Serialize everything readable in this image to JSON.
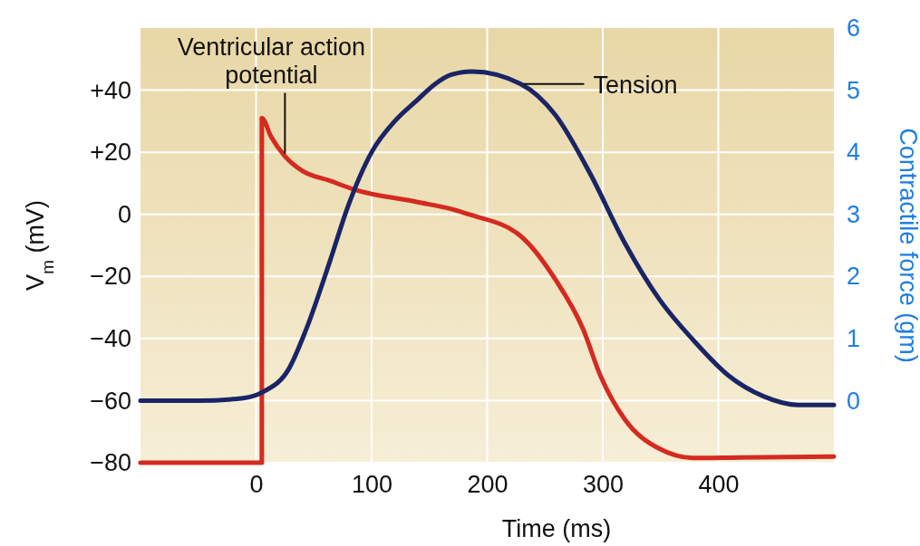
{
  "chart_data": {
    "type": "line",
    "xlabel": "Time (ms)",
    "ylabel": "V$_{m}$ (mV)",
    "y2label": "Contractile force (gm)",
    "xlim": [
      -100,
      500
    ],
    "xticks": [
      0,
      100,
      200,
      300,
      400
    ],
    "ylim": [
      -80,
      60
    ],
    "yticks": [
      -80,
      -60,
      -40,
      -20,
      0,
      {
        "value": 20,
        "label": "+20"
      },
      {
        "value": 40,
        "label": "+40"
      }
    ],
    "y2lim": [
      -1,
      6
    ],
    "y2ticks": [
      0,
      1,
      2,
      3,
      4,
      5,
      6
    ],
    "grid": true,
    "legend": false,
    "series": [
      {
        "name": "Ventricular action potential",
        "color": "#d42a20",
        "x": [
          -100,
          5,
          5,
          13,
          25,
          40,
          64,
          85,
          139,
          169,
          184,
          229,
          259,
          283,
          298,
          319,
          349,
          379,
          420,
          460,
          500
        ],
        "values": [
          -80,
          -80,
          31,
          25,
          18.7,
          14,
          10.8,
          8,
          4,
          1.7,
          0,
          -7,
          -21,
          -37,
          -52,
          -66,
          -75.5,
          -78.5,
          -78.3,
          -78.2,
          -78
        ]
      },
      {
        "name": "Tension",
        "color": "#1a2466",
        "axis": "y2",
        "x": [
          -100,
          -50,
          -11,
          7,
          28,
          43,
          64,
          79,
          100,
          120,
          140,
          155,
          169,
          187,
          229,
          259,
          289,
          319,
          349,
          379,
          409,
          439,
          469,
          500
        ],
        "values": [
          0,
          0,
          0.04,
          0.15,
          0.5,
          1.13,
          2.25,
          3.1,
          4,
          4.5,
          4.85,
          5.1,
          5.25,
          5.3,
          5.1,
          4.6,
          3.66,
          2.54,
          1.63,
          0.96,
          0.4,
          0.07,
          -0.07,
          -0.07
        ]
      }
    ]
  }
}
